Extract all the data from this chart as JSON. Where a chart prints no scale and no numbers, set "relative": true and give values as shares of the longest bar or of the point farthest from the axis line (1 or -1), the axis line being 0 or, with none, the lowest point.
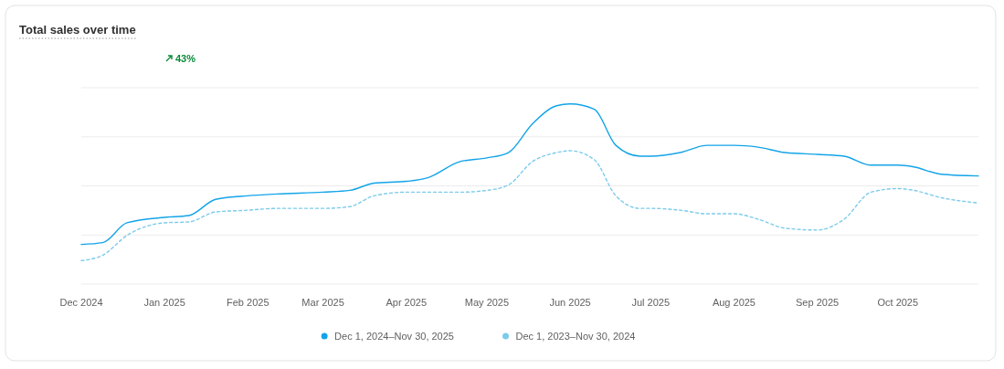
{
  "chart_data": {
    "type": "line",
    "title": "Total sales over time",
    "relative": true,
    "grid": "y",
    "legend": "bottom",
    "marker": "none",
    "annotations": [
      "43%"
    ],
    "xlim": [
      "2024-12-01",
      "2025-10-31"
    ],
    "xticks": [
      {
        "value": "2024-12-01",
        "label": "Dec 2024"
      },
      {
        "value": "2025-01-01",
        "label": "Jan 2025"
      },
      {
        "value": "2025-02-01",
        "label": "Feb 2025"
      },
      {
        "value": "2025-03-01",
        "label": "Mar 2025"
      },
      {
        "value": "2025-04-01",
        "label": "Apr 2025"
      },
      {
        "value": "2025-05-01",
        "label": "May 2025"
      },
      {
        "value": "2025-06-01",
        "label": "Jun 2025"
      },
      {
        "value": "2025-07-01",
        "label": "Jul 2025"
      },
      {
        "value": "2025-08-01",
        "label": "Aug 2025"
      },
      {
        "value": "2025-09-01",
        "label": "Sep 2025"
      },
      {
        "value": "2025-10-01",
        "label": "Oct 2025"
      }
    ],
    "x": [
      "2024-12-01",
      "2024-12-09",
      "2024-12-18",
      "2025-01-01",
      "2025-01-10",
      "2025-01-20",
      "2025-02-01",
      "2025-02-12",
      "2025-03-01",
      "2025-03-11",
      "2025-03-20",
      "2025-04-01",
      "2025-04-09",
      "2025-04-21",
      "2025-05-01",
      "2025-05-09",
      "2025-05-18",
      "2025-05-27",
      "2025-06-01",
      "2025-06-10",
      "2025-06-18",
      "2025-06-27",
      "2025-07-01",
      "2025-07-12",
      "2025-07-22",
      "2025-08-01",
      "2025-08-10",
      "2025-08-20",
      "2025-09-01",
      "2025-09-11",
      "2025-09-21",
      "2025-10-01",
      "2025-10-07",
      "2025-10-17",
      "2025-10-31"
    ],
    "series": [
      {
        "name": "Dec 1, 2024–Nov 30, 2025",
        "color": "#13a4e8",
        "line_style": "solid",
        "values": [
          0.22,
          0.23,
          0.34,
          0.37,
          0.38,
          0.47,
          0.49,
          0.5,
          0.51,
          0.52,
          0.56,
          0.57,
          0.59,
          0.68,
          0.7,
          0.73,
          0.89,
          0.99,
          1.0,
          0.97,
          0.77,
          0.71,
          0.71,
          0.73,
          0.77,
          0.77,
          0.76,
          0.73,
          0.72,
          0.71,
          0.66,
          0.66,
          0.65,
          0.61,
          0.6
        ]
      },
      {
        "name": "Dec 1, 2023–Nov 30, 2024",
        "color": "#7ccbeb",
        "line_style": "dashed",
        "values": [
          0.13,
          0.16,
          0.27,
          0.34,
          0.345,
          0.4,
          0.41,
          0.42,
          0.42,
          0.43,
          0.49,
          0.51,
          0.51,
          0.51,
          0.52,
          0.55,
          0.68,
          0.73,
          0.74,
          0.69,
          0.49,
          0.42,
          0.42,
          0.41,
          0.39,
          0.39,
          0.36,
          0.31,
          0.3,
          0.36,
          0.51,
          0.53,
          0.52,
          0.48,
          0.45
        ]
      }
    ]
  }
}
